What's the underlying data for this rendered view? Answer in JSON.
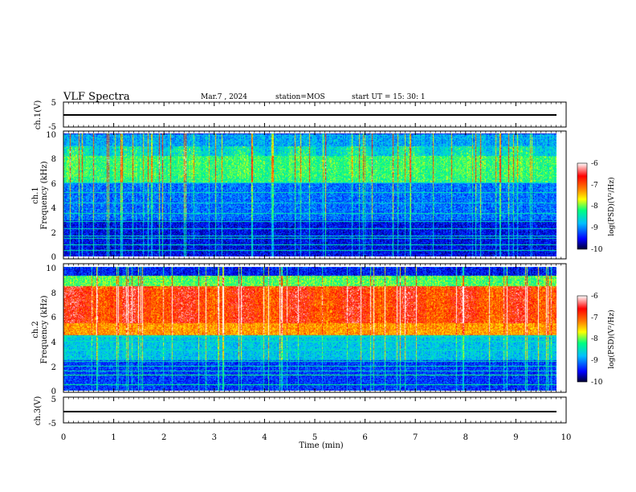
{
  "header": {
    "title": "VLF Spectra",
    "date": "Mar.7 , 2024",
    "station": "station=MOS",
    "start": "start UT =  15: 30: 1"
  },
  "colors": {
    "colormap": [
      "#000033",
      "#0000ff",
      "#00bfff",
      "#00ff80",
      "#ffff00",
      "#ff8000",
      "#ff0000",
      "#ffffff"
    ],
    "background": "#000000"
  },
  "chart_data": [
    {
      "type": "line",
      "panel": "ch1",
      "ylabel": "ch.1(V)",
      "ylim": [
        -5,
        5
      ],
      "yticks": [
        "5",
        "-5"
      ],
      "x": [
        0,
        10
      ],
      "values": [
        0,
        0
      ]
    },
    {
      "type": "heatmap",
      "panel": "spec1",
      "ylabel": "ch.1\nFrequency (kHz)",
      "ylim": [
        0,
        10
      ],
      "yticks": [
        "0",
        "2",
        "4",
        "6",
        "8",
        "10"
      ],
      "xlim": [
        0,
        9.85
      ],
      "colorbar": {
        "ticks": [
          "-6",
          "-7",
          "-8",
          "-9",
          "-10"
        ],
        "label": "log(PSD)(V²/Hz)",
        "range": [
          -10,
          -6
        ]
      },
      "description_levels": {
        "low_band_kHz": [
          0,
          3
        ],
        "mid_band_kHz": [
          3,
          8
        ],
        "high_band_kHz": [
          8,
          10
        ]
      },
      "band_levels": [
        -9.6,
        -9.2,
        -8.3,
        -9.0
      ],
      "band_edges_kHz": [
        0,
        3,
        6,
        8.2,
        10
      ],
      "hiss_band_kHz": [
        6.5,
        9
      ],
      "hiss_level": -8.4,
      "lines_kHz": [
        0.5,
        1.0,
        1.5,
        1.7,
        2.3,
        2.9,
        3.5,
        4.4,
        5.2,
        6.0
      ],
      "line_level": -8.7
    },
    {
      "type": "heatmap",
      "panel": "spec2",
      "ylabel": "ch.2\nFrequency (kHz)",
      "ylim": [
        0,
        10
      ],
      "yticks": [
        "0",
        "2",
        "4",
        "6",
        "8",
        "10"
      ],
      "xlim": [
        0,
        9.85
      ],
      "colorbar": {
        "ticks": [
          "-6",
          "-7",
          "-8",
          "-9",
          "-10"
        ],
        "label": "log(PSD)(V²/Hz)",
        "range": [
          -10,
          -6
        ]
      },
      "band_levels": [
        -9.4,
        -8.8,
        -7.4,
        -8.2,
        -9.6
      ],
      "band_edges_kHz": [
        0,
        2.5,
        4.5,
        8.3,
        9.3,
        10
      ],
      "hiss_band_kHz": [
        5.5,
        8.5
      ],
      "hiss_level": -6.7,
      "lines_kHz": [
        0.5,
        1.3,
        1.6,
        2.0,
        2.4,
        3.3,
        4.0,
        4.4
      ],
      "line_level": -8.5
    },
    {
      "type": "line",
      "panel": "ch3",
      "ylabel": "ch.3(V)",
      "ylim": [
        -5,
        5
      ],
      "yticks": [
        "5",
        "-5"
      ],
      "x": [
        0,
        10
      ],
      "values": [
        0,
        0
      ]
    }
  ],
  "xaxis": {
    "label": "Time  (min)",
    "ticks": [
      "0",
      "1",
      "2",
      "3",
      "4",
      "5",
      "6",
      "7",
      "8",
      "9",
      "10"
    ],
    "range": [
      0,
      10
    ]
  }
}
